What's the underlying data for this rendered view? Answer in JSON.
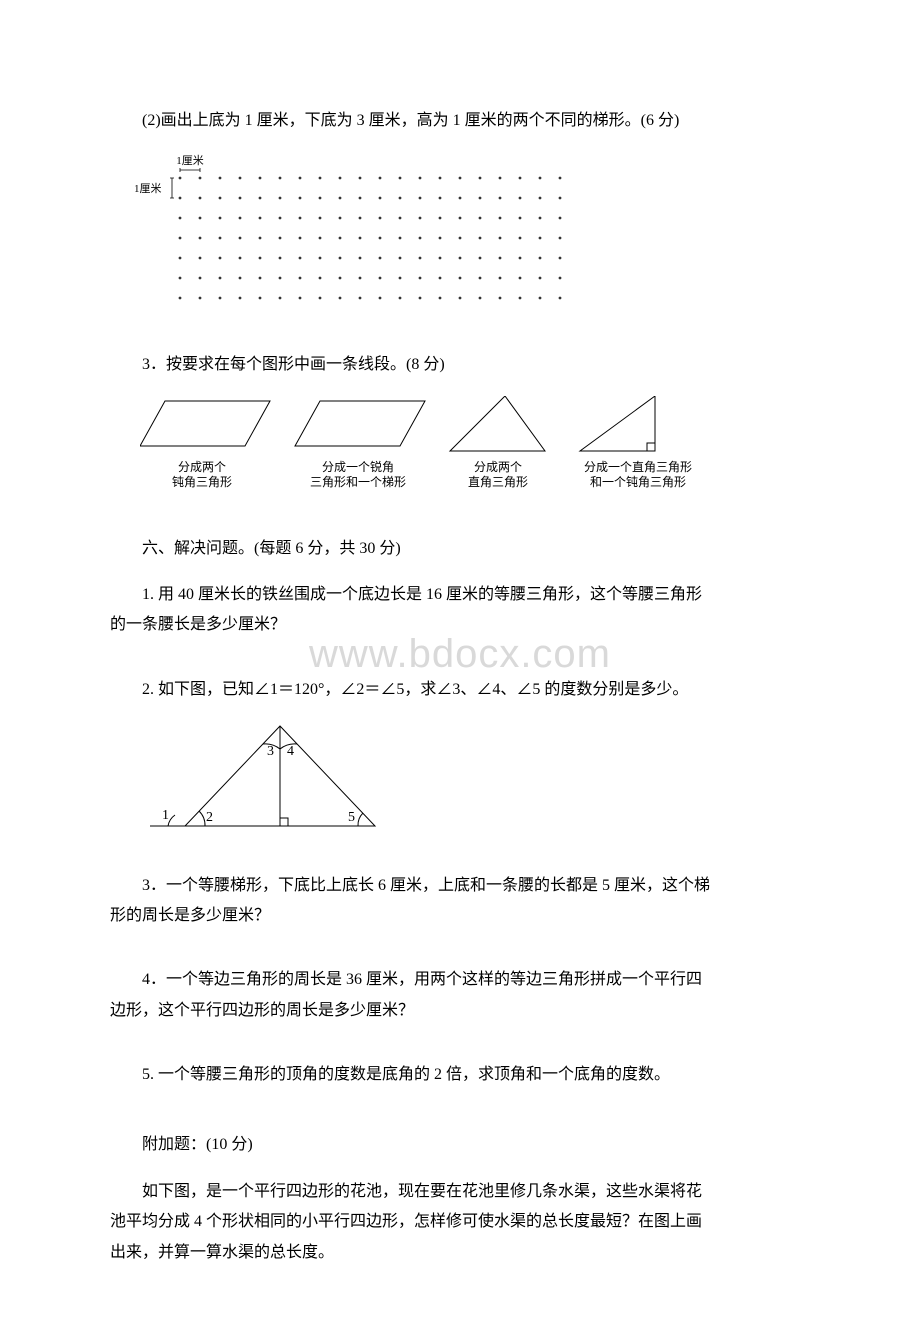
{
  "q2_sub2": "(2)画出上底为 1 厘米，下底为 3 厘米，高为 1 厘米的两个不同的梯形。(6 分)",
  "dotgrid": {
    "top_label": "1厘米",
    "left_label": "1厘米",
    "rows": 7,
    "cols": 20,
    "dot_color": "#333333",
    "spacing": 20
  },
  "q3": "3．按要求在每个图形中画一条线段。(8 分)",
  "shapes": {
    "caption1a": "分成两个",
    "caption1b": "钝角三角形",
    "caption2a": "分成一个锐角",
    "caption2b": "三角形和一个梯形",
    "caption3a": "分成两个",
    "caption3b": "直角三角形",
    "caption4a": "分成一个直角三角形",
    "caption4b": "和一个钝角三角形",
    "stroke": "#000000",
    "stroke_width": 1
  },
  "section6": "六、解决问题。(每题 6 分，共 30 分)",
  "p1": "1. 用 40 厘米长的铁丝围成一个底边长是 16 厘米的等腰三角形，这个等腰三角形的一条腰长是多少厘米？",
  "p2": "2. 如下图，已知∠1＝120°，∠2＝∠5，求∠3、∠4、∠5 的度数分别是多少。",
  "tri": {
    "labels": [
      "1",
      "2",
      "3",
      "4",
      "5"
    ],
    "stroke": "#000000"
  },
  "p3": "3．一个等腰梯形，下底比上底长 6 厘米，上底和一条腰的长都是 5 厘米，这个梯形的周长是多少厘米？",
  "p4": "4．一个等边三角形的周长是 36 厘米，用两个这样的等边三角形拼成一个平行四边形，这个平行四边形的周长是多少厘米？",
  "p5": "5. 一个等腰三角形的顶角的度数是底角的 2 倍，求顶角和一个底角的度数。",
  "bonus_title": "附加题：(10 分)",
  "bonus": "如下图，是一个平行四边形的花池，现在要在花池里修几条水渠，这些水渠将花池平均分成 4 个形状相同的小平行四边形，怎样修可使水渠的总长度最短？在图上画出来，并算一算水渠的总长度。",
  "watermark": "www.bdocx.com",
  "page_bg": "#ffffff",
  "text_color": "#000000"
}
